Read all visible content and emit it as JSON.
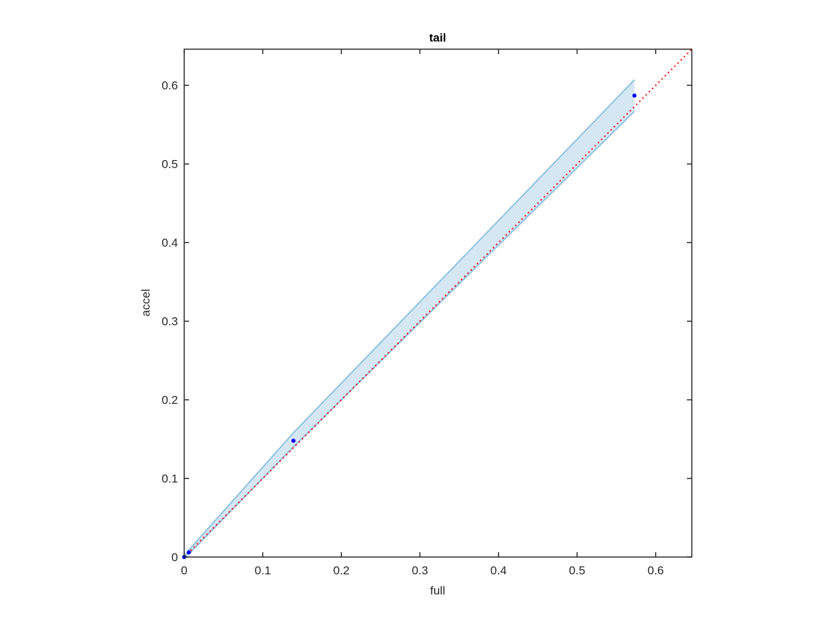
{
  "chart_data": {
    "type": "scatter",
    "title": "tail",
    "xlabel": "full",
    "ylabel": "accel",
    "xlim": [
      0,
      0.646
    ],
    "ylim": [
      0,
      0.646
    ],
    "xticks": [
      0,
      0.1,
      0.2,
      0.3,
      0.4,
      0.5,
      0.6
    ],
    "yticks": [
      0,
      0.1,
      0.2,
      0.3,
      0.4,
      0.5,
      0.6
    ],
    "xtick_labels": [
      "0",
      "0.1",
      "0.2",
      "0.3",
      "0.4",
      "0.5",
      "0.6"
    ],
    "ytick_labels": [
      "0",
      "0.1",
      "0.2",
      "0.3",
      "0.4",
      "0.5",
      "0.6"
    ],
    "grid": false,
    "points": {
      "x": [
        0,
        0.006,
        0.139,
        0.573
      ],
      "y": [
        0,
        0.006,
        0.148,
        0.587
      ],
      "color": "#0000ff"
    },
    "band": {
      "x": [
        0,
        0.006,
        0.139,
        0.573
      ],
      "upper": [
        0,
        0.009,
        0.158,
        0.607
      ],
      "lower": [
        0,
        0.004,
        0.14,
        0.567
      ],
      "fill": "#d6e7f4",
      "edge": "#8fc1e0"
    },
    "reference_line": {
      "x": [
        0,
        0.646
      ],
      "y": [
        0,
        0.646
      ],
      "color": "#ff0000",
      "style": "dotted"
    }
  }
}
